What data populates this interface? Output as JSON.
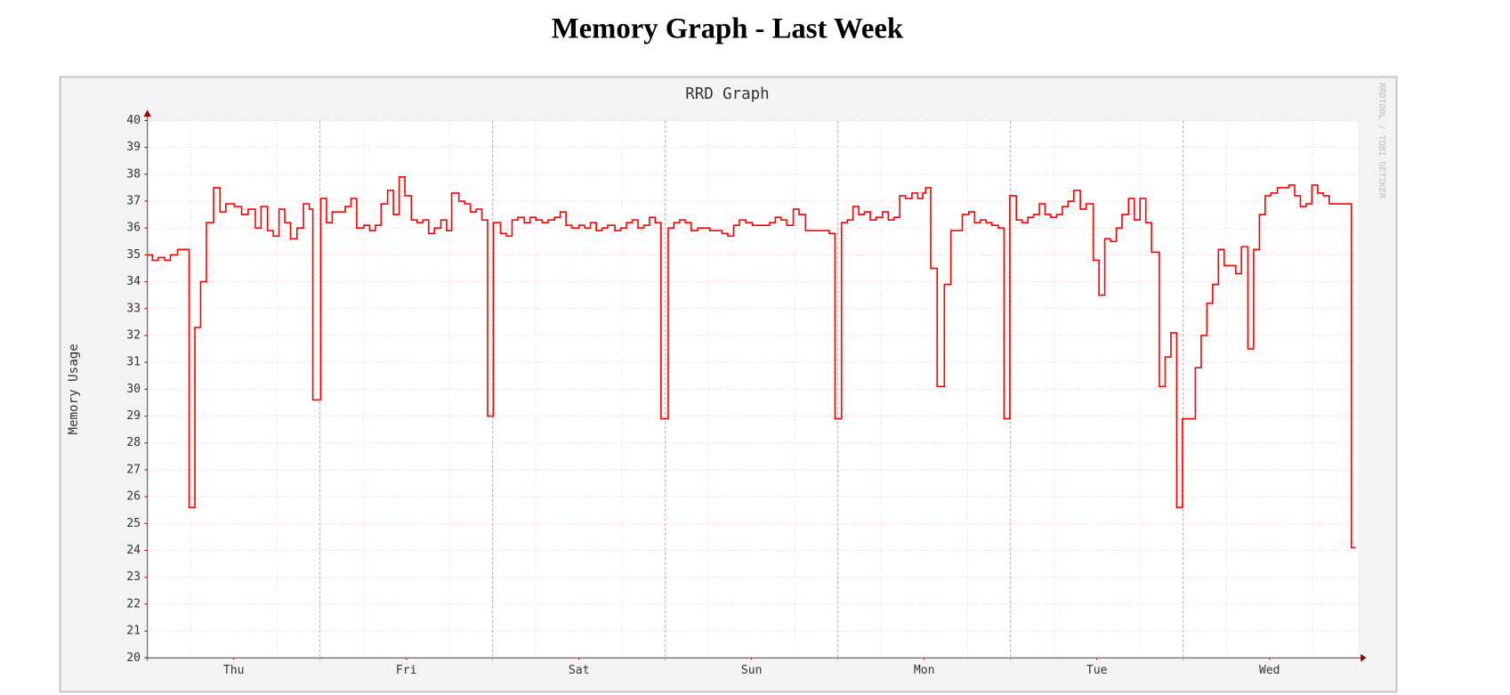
{
  "page_title": "Memory Graph - Last Week",
  "chart_data": {
    "type": "step",
    "title": "RRD Graph",
    "y_label": "Memory Usage",
    "watermark": "RRDTOOL / TOBI OETIKER",
    "color": "#ff0000",
    "grid": true,
    "xlim": [
      0,
      168
    ],
    "ylim": [
      20,
      40
    ],
    "yticks": [
      20,
      21,
      22,
      23,
      24,
      25,
      26,
      27,
      28,
      29,
      30,
      31,
      32,
      33,
      34,
      35,
      36,
      37,
      38,
      39,
      40
    ],
    "xticks": [
      {
        "value": 12,
        "label": "Thu"
      },
      {
        "value": 36,
        "label": "Fri"
      },
      {
        "value": 60,
        "label": "Sat"
      },
      {
        "value": 84,
        "label": "Sun"
      },
      {
        "value": 108,
        "label": "Mon"
      },
      {
        "value": 132,
        "label": "Tue"
      },
      {
        "value": 156,
        "label": "Wed"
      }
    ],
    "xgrid_major": [
      24,
      48,
      72,
      96,
      120,
      144
    ],
    "xgrid_minor": [
      6,
      18,
      30,
      42,
      54,
      66,
      78,
      90,
      102,
      114,
      126,
      138,
      150,
      162
    ],
    "x": [
      0,
      0.7,
      1.5,
      2.4,
      3.2,
      4.2,
      5.8,
      6.6,
      7.4,
      8.2,
      9.2,
      10.1,
      10.9,
      12.1,
      13.1,
      14,
      15,
      15.8,
      16.7,
      17.5,
      18.3,
      19.1,
      19.9,
      20.8,
      21.7,
      22.5,
      23,
      24.1,
      24.9,
      25.7,
      27.5,
      28.3,
      29.1,
      30.1,
      30.9,
      31.7,
      32.5,
      33.4,
      34.2,
      35,
      35.8,
      36.7,
      37.5,
      38.3,
      39.1,
      39.9,
      40.8,
      41.6,
      42.3,
      43.3,
      44.1,
      44.9,
      45.7,
      46.5,
      47.3,
      48.1,
      49.1,
      49.9,
      50.7,
      51.5,
      52.4,
      53.2,
      54,
      54.9,
      55.7,
      56.6,
      57.4,
      58.2,
      59,
      60,
      60.8,
      61.6,
      62.4,
      63.2,
      64,
      65,
      65.8,
      66.6,
      67.4,
      68.2,
      69,
      69.8,
      70.6,
      71.4,
      72.4,
      73.2,
      74,
      74.8,
      75.6,
      76.5,
      78.2,
      79.9,
      80.7,
      81.5,
      82.3,
      83.2,
      84.1,
      86.5,
      87.3,
      88.1,
      88.9,
      89.8,
      90.6,
      91.5,
      94.8,
      95.6,
      96.5,
      97.3,
      98.1,
      98.9,
      99.7,
      100.5,
      101.3,
      102.2,
      103,
      103.8,
      104.6,
      105.4,
      106.3,
      107.1,
      107.8,
      108.2,
      108.9,
      109.8,
      110.8,
      111.7,
      112.5,
      113.3,
      114.2,
      115,
      115.8,
      116.6,
      117.4,
      118.3,
      119.1,
      119.9,
      120.8,
      121.6,
      122.4,
      123.2,
      124,
      124.8,
      125.6,
      126.4,
      127.2,
      128,
      128.8,
      129.7,
      130.5,
      131.5,
      132.3,
      133.1,
      133.9,
      134.7,
      135.5,
      136.4,
      137.2,
      138,
      138.8,
      139.6,
      140.7,
      141.5,
      142.3,
      143.1,
      143.9,
      145.7,
      146.5,
      147.3,
      148.1,
      148.9,
      149.7,
      151.3,
      152.1,
      153,
      153.8,
      154.6,
      155.4,
      156.2,
      157.1,
      158.7,
      159.5,
      160.3,
      161.1,
      161.9,
      162.7,
      163.5,
      164.3,
      165.4,
      167.4
    ],
    "values": [
      35,
      34.8,
      34.9,
      34.8,
      35,
      35.2,
      25.6,
      32.3,
      34,
      36.2,
      37.5,
      36.6,
      36.9,
      36.8,
      36.5,
      36.7,
      36,
      36.8,
      35.9,
      35.7,
      36.7,
      36.2,
      35.6,
      36,
      36.9,
      36.7,
      29.6,
      37.1,
      36.2,
      36.6,
      36.8,
      37.1,
      36,
      36.1,
      35.9,
      36.1,
      36.9,
      37.4,
      36.5,
      37.9,
      37.2,
      36.3,
      36.2,
      36.3,
      35.8,
      36,
      36.3,
      35.9,
      37.3,
      37,
      36.9,
      36.6,
      36.7,
      36.3,
      29,
      36.2,
      35.8,
      35.7,
      36.3,
      36.4,
      36.2,
      36.4,
      36.3,
      36.2,
      36.3,
      36.4,
      36.6,
      36.1,
      36,
      36.1,
      36,
      36.2,
      35.9,
      36,
      36.1,
      35.9,
      36,
      36.2,
      36.3,
      36,
      36.1,
      36.4,
      36.2,
      28.9,
      36,
      36.2,
      36.3,
      36.2,
      35.9,
      36,
      35.9,
      35.8,
      35.7,
      36.1,
      36.3,
      36.2,
      36.1,
      36.2,
      36.4,
      36.3,
      36.1,
      36.7,
      36.5,
      35.9,
      35.8,
      28.9,
      36.2,
      36.3,
      36.8,
      36.5,
      36.6,
      36.3,
      36.4,
      36.6,
      36.3,
      36.4,
      37.2,
      37.1,
      37.3,
      37.1,
      37.3,
      37.5,
      34.5,
      30.1,
      33.9,
      35.9,
      35.9,
      36.5,
      36.6,
      36.2,
      36.3,
      36.2,
      36.1,
      36,
      28.9,
      37.2,
      36.3,
      36.2,
      36.4,
      36.5,
      36.9,
      36.5,
      36.4,
      36.5,
      36.8,
      37,
      37.4,
      36.7,
      36.9,
      34.8,
      33.5,
      35.6,
      35.5,
      36,
      36.5,
      37.1,
      36.3,
      37.1,
      36.2,
      35.1,
      30.1,
      31.2,
      32.1,
      25.6,
      28.9,
      30.8,
      32,
      33.2,
      33.9,
      35.2,
      34.6,
      34.3,
      35.3,
      31.5,
      35.2,
      36.5,
      37.2,
      37.3,
      37.5,
      37.6,
      37.2,
      36.8,
      36.9,
      37.6,
      37.3,
      37.2,
      36.9,
      36.9,
      24.1
    ]
  }
}
